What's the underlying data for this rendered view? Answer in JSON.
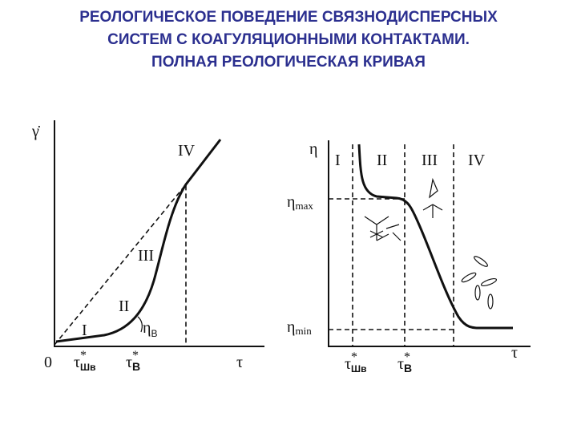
{
  "title": [
    "РЕОЛОГИЧЕСКОЕ ПОВЕДЕНИЕ СВЯЗНОДИСПЕРСНЫХ",
    "СИСТЕМ С КОАГУЛЯЦИОННЫМИ КОНТАКТАМИ.",
    "ПОЛНАЯ РЕОЛОГИЧЕСКАЯ КРИВАЯ"
  ],
  "left_plot": {
    "y_axis": "γ̇",
    "x_axis": "τ",
    "origin": "0",
    "regions": [
      "I",
      "II",
      "III",
      "IV"
    ],
    "viscosity": {
      "symbol": "η",
      "sub": "В"
    },
    "x_marks": [
      {
        "symbol": "τ",
        "sup": "*",
        "sub": "Шв"
      },
      {
        "symbol": "τ",
        "sup": "*",
        "sub": "В"
      }
    ]
  },
  "right_plot": {
    "y_axis": "η",
    "x_axis": "τ",
    "regions": [
      "I",
      "II",
      "III",
      "IV"
    ],
    "y_marks": [
      {
        "symbol": "η",
        "sub": "max"
      },
      {
        "symbol": "η",
        "sub": "min"
      }
    ],
    "x_marks": [
      {
        "symbol": "τ",
        "sup": "*",
        "sub": "Шв"
      },
      {
        "symbol": "τ",
        "sup": "*",
        "sub": "В"
      }
    ]
  }
}
